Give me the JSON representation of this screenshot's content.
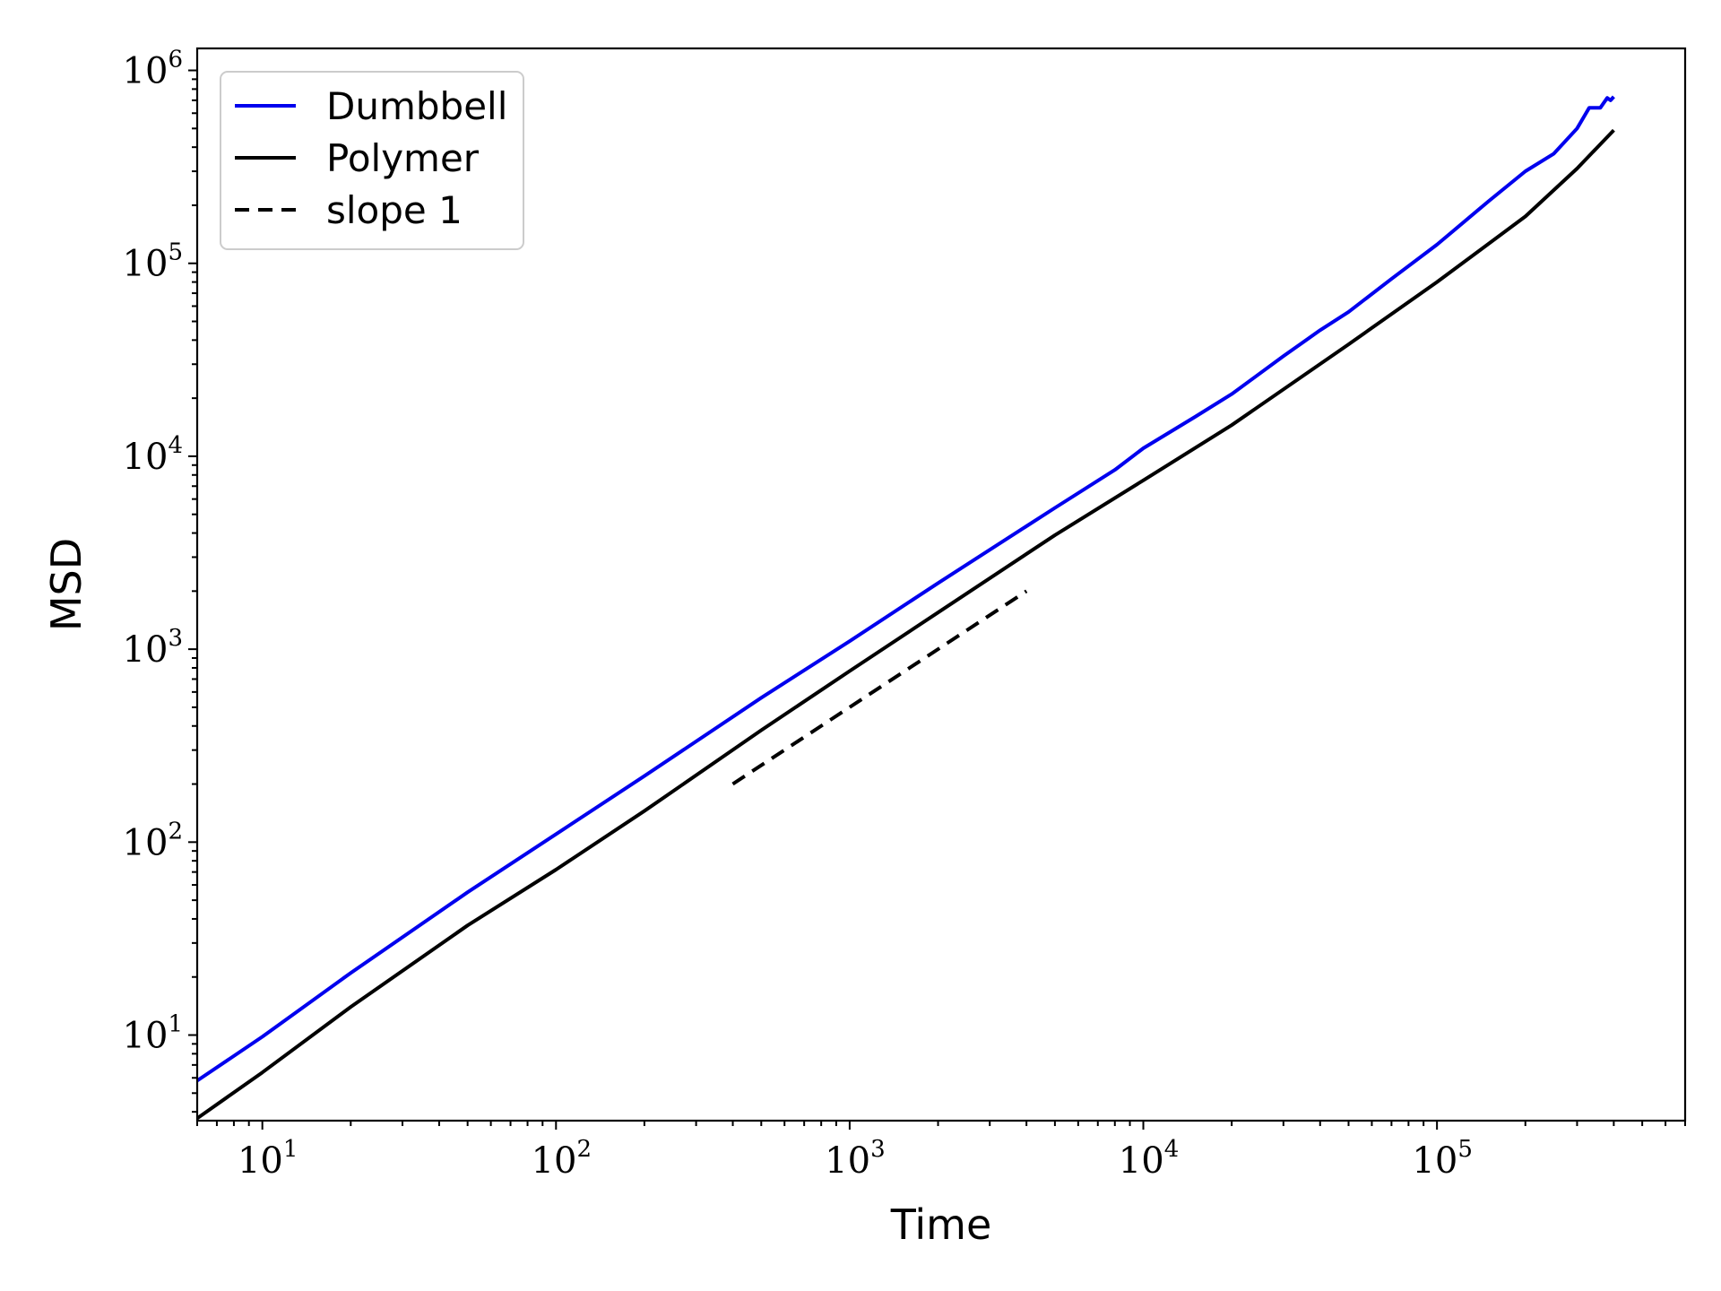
{
  "chart_data": {
    "type": "line",
    "title": "",
    "xlabel": "Time",
    "ylabel": "MSD",
    "xscale": "log",
    "yscale": "log",
    "xlim": [
      6,
      700000
    ],
    "ylim": [
      3.6,
      1300000
    ],
    "x_ticks": [
      {
        "base": "10",
        "exp": "1",
        "value": 10
      },
      {
        "base": "10",
        "exp": "2",
        "value": 100
      },
      {
        "base": "10",
        "exp": "3",
        "value": 1000
      },
      {
        "base": "10",
        "exp": "4",
        "value": 10000
      },
      {
        "base": "10",
        "exp": "5",
        "value": 100000
      }
    ],
    "y_ticks": [
      {
        "base": "10",
        "exp": "1",
        "value": 10
      },
      {
        "base": "10",
        "exp": "2",
        "value": 100
      },
      {
        "base": "10",
        "exp": "3",
        "value": 1000
      },
      {
        "base": "10",
        "exp": "4",
        "value": 10000
      },
      {
        "base": "10",
        "exp": "5",
        "value": 100000
      },
      {
        "base": "10",
        "exp": "6",
        "value": 1000000
      }
    ],
    "grid": false,
    "legend_position": "top-left",
    "series": [
      {
        "name": "Dumbbell",
        "color": "#0000ee",
        "style": "solid",
        "x": [
          6,
          10,
          20,
          50,
          100,
          200,
          500,
          1000,
          2000,
          5000,
          8000,
          10000,
          15000,
          20000,
          30000,
          40000,
          50000,
          70000,
          100000,
          150000,
          200000,
          250000,
          300000,
          330000,
          360000,
          380000,
          390000,
          400000
        ],
        "y": [
          5.8,
          9.8,
          21,
          55,
          110,
          220,
          560,
          1100,
          2200,
          5400,
          8500,
          11000,
          16000,
          21000,
          33000,
          45000,
          56000,
          83000,
          125000,
          210000,
          300000,
          370000,
          500000,
          640000,
          640000,
          720000,
          700000,
          730000
        ]
      },
      {
        "name": "Polymer",
        "color": "#000000",
        "style": "solid",
        "x": [
          6,
          10,
          20,
          50,
          100,
          200,
          500,
          1000,
          2000,
          5000,
          10000,
          20000,
          50000,
          100000,
          200000,
          300000,
          400000
        ],
        "y": [
          3.7,
          6.4,
          14,
          37,
          72,
          145,
          380,
          770,
          1550,
          3900,
          7500,
          14500,
          38000,
          80000,
          175000,
          310000,
          490000
        ]
      },
      {
        "name": "slope 1",
        "color": "#000000",
        "style": "dashed",
        "x": [
          400,
          4000
        ],
        "y": [
          200,
          2000
        ]
      }
    ]
  }
}
